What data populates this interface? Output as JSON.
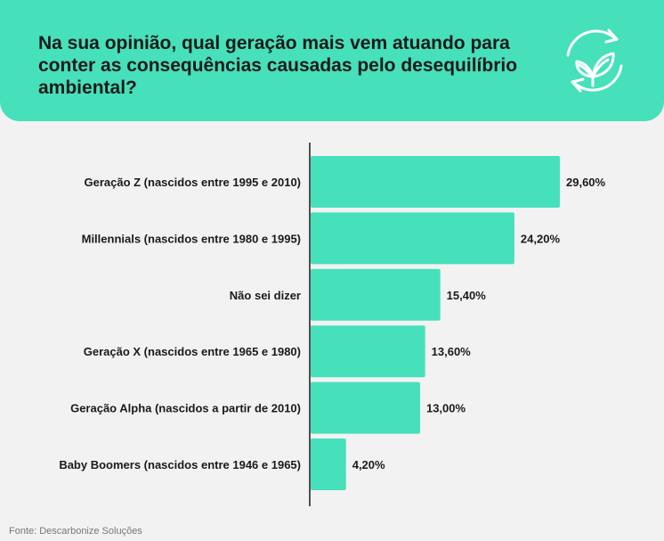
{
  "header": {
    "title": "Na sua opinião, qual geração mais vem atuando para conter as consequências causadas pelo desequilíbrio ambiental?",
    "logo_icon": "recycle-leaf-icon"
  },
  "source": "Fonte: Descarbonize Soluções",
  "colors": {
    "header_bg": "#46e0bb",
    "bar": "#46e0bb",
    "page_bg": "#f2f2f2",
    "text": "#1a1a1a"
  },
  "chart_data": {
    "type": "bar",
    "orientation": "horizontal",
    "title": "Na sua opinião, qual geração mais vem atuando para conter as consequências causadas pelo desequilíbrio ambiental?",
    "categories": [
      "Geração Z (nascidos entre 1995 e 2010)",
      "Millennials (nascidos entre 1980 e 1995)",
      "Não sei dizer",
      "Geração X (nascidos entre 1965 e 1980)",
      "Geração Alpha (nascidos a partir de 2010)",
      "Baby Boomers (nascidos entre 1946 e 1965)"
    ],
    "values": [
      29.6,
      24.2,
      15.4,
      13.6,
      13.0,
      4.2
    ],
    "value_labels": [
      "29,60%",
      "24,20%",
      "15,40%",
      "13,60%",
      "13,00%",
      "4,20%"
    ],
    "xlabel": "",
    "ylabel": "",
    "xlim": [
      0,
      29.6
    ],
    "grid": false,
    "legend": "none"
  }
}
